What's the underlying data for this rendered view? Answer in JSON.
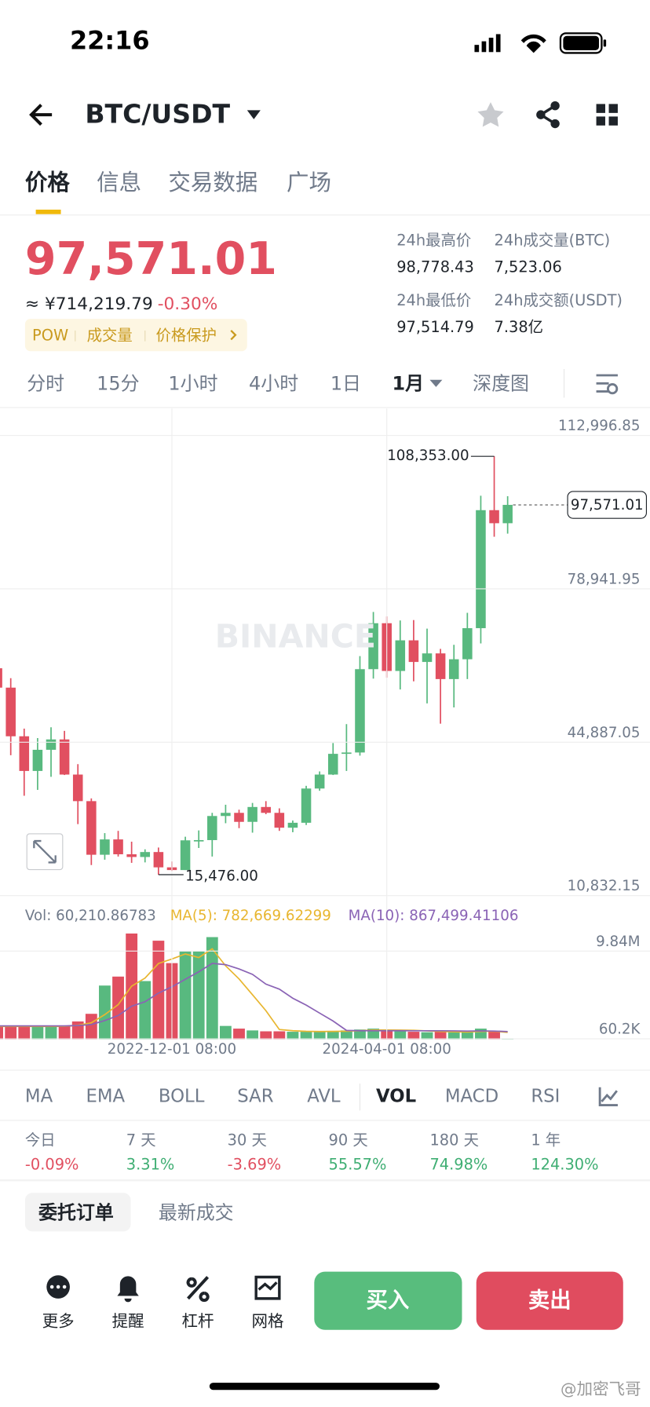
{
  "status_bar": {
    "time": "22:16"
  },
  "header": {
    "pair": "BTC/USDT"
  },
  "tabs": [
    "价格",
    "信息",
    "交易数据",
    "广场"
  ],
  "price": {
    "last": "97,571.01",
    "cny": "≈ ¥714,219.79",
    "change": "-0.30%"
  },
  "tags": [
    "POW",
    "成交量",
    "价格保护"
  ],
  "stats": [
    {
      "label": "24h最高价",
      "value": "98,778.43"
    },
    {
      "label": "24h成交量(BTC)",
      "value": "7,523.06"
    },
    {
      "label": "24h最低价",
      "value": "97,514.79"
    },
    {
      "label": "24h成交额(USDT)",
      "value": "7.38亿"
    }
  ],
  "intervals": [
    "分时",
    "15分",
    "1小时",
    "4小时",
    "1日",
    "1月",
    "深度图"
  ],
  "chart_data": {
    "type": "candlestick",
    "watermark": "BINANCE",
    "up_color": "#58b97f",
    "down_color": "#e14f60",
    "categories": [
      null,
      null,
      null,
      null,
      null,
      null,
      null,
      null,
      null,
      null,
      null,
      null,
      null,
      "2022-12-01 08:00",
      null,
      null,
      null,
      null,
      null,
      null,
      null,
      null,
      null,
      null,
      null,
      null,
      null,
      null,
      null,
      "2024-04-01 08:00",
      null,
      null,
      null,
      null,
      null,
      null,
      null,
      null,
      null
    ],
    "open": [
      61300,
      57000,
      46200,
      38500,
      43200,
      45500,
      37700,
      31800,
      19900,
      23300,
      20000,
      19400,
      20500,
      17100,
      16500,
      23100,
      23150,
      28500,
      29200,
      27200,
      30500,
      29200,
      25900,
      27000,
      34600,
      37700,
      42300,
      42600,
      61100,
      71300,
      60700,
      67500,
      62700,
      64600,
      58900,
      63300,
      70200,
      96400,
      93500
    ],
    "high": [
      69000,
      59100,
      47900,
      45800,
      48200,
      47400,
      40000,
      32400,
      24700,
      25200,
      22800,
      21100,
      21500,
      18400,
      23900,
      25300,
      29200,
      31000,
      29900,
      31400,
      31800,
      30200,
      27500,
      35200,
      38400,
      44700,
      48900,
      64000,
      73800,
      72800,
      71900,
      72000,
      70100,
      65600,
      66500,
      73600,
      99600,
      108353,
      99500
    ],
    "low": [
      53300,
      42000,
      33000,
      34300,
      37200,
      37600,
      26700,
      17600,
      18800,
      19500,
      18100,
      18200,
      15476,
      16300,
      16500,
      21400,
      19500,
      26900,
      25800,
      24800,
      28900,
      25200,
      24900,
      26500,
      34100,
      37600,
      38500,
      41900,
      59000,
      59200,
      56600,
      58400,
      53500,
      49000,
      52600,
      58900,
      66800,
      90500,
      91200
    ],
    "close": [
      57000,
      46200,
      38500,
      43200,
      45500,
      37700,
      31800,
      19900,
      23300,
      20000,
      19400,
      20500,
      17100,
      16500,
      23100,
      23150,
      28500,
      29200,
      27200,
      30500,
      29200,
      25900,
      27000,
      34600,
      37700,
      42300,
      42600,
      61100,
      71300,
      60700,
      67500,
      62700,
      64600,
      58900,
      63300,
      70200,
      96400,
      93500,
      97571.01
    ],
    "max_label": "108,353.00",
    "min_label": "15,476.00",
    "last_label": "97,571.01",
    "ylim": [
      10832.15,
      118982
    ],
    "yticks": [
      {
        "value": 112996.85,
        "label": "112,996.85"
      },
      {
        "value": 78941.95,
        "label": "78,941.95"
      },
      {
        "value": 44887.05,
        "label": "44,887.05"
      },
      {
        "value": 10832.15,
        "label": "10,832.15"
      }
    ],
    "grid": true,
    "volume": {
      "label": "Vol: 60,210.86783",
      "values": [
        1450000,
        1450000,
        1450000,
        1450000,
        1450000,
        1500000,
        2000000,
        2850000,
        6000000,
        7000000,
        11800000,
        6500000,
        11000000,
        8500000,
        9800000,
        9800000,
        11400000,
        1500000,
        1200000,
        1000000,
        900000,
        900000,
        850000,
        850000,
        900000,
        950000,
        1000000,
        1100000,
        1200000,
        1000000,
        900000,
        850000,
        800000,
        850000,
        800000,
        800000,
        1200000,
        900000,
        60210.86783
      ],
      "ylim": [
        0,
        15030000
      ],
      "yticks": [
        {
          "value": 9840000,
          "label": "9.84M"
        },
        {
          "value": 60200,
          "label": "60.2K"
        }
      ],
      "ma": [
        {
          "name": "MA(5): 782,669.62299",
          "color": "#e8b630",
          "values": [
            1450000,
            1450000,
            1450000,
            1450000,
            1450000,
            1460000,
            1570000,
            1850000,
            2760000,
            3870000,
            5930000,
            6830000,
            8460000,
            8960000,
            9520000,
            9120000,
            10100000,
            8200000,
            6740000,
            4980000,
            3200000,
            1100000,
            970000,
            900000,
            880000,
            890000,
            910000,
            970000,
            1040000,
            1050000,
            1030000,
            1010000,
            950000,
            880000,
            840000,
            820000,
            890000,
            910000,
            782669.62299
          ]
        },
        {
          "name": "MA(10): 867,499.41106",
          "color": "#8a63b5",
          "values": [
            1500000,
            1500000,
            1500000,
            1500000,
            1500000,
            1500000,
            1550000,
            1650000,
            2100000,
            2660000,
            3700000,
            4200000,
            5160000,
            5860000,
            6700000,
            7530000,
            8470000,
            8330000,
            7850000,
            7250000,
            6160000,
            5600000,
            4590000,
            3820000,
            2930000,
            2050000,
            1000000,
            970000,
            970000,
            970000,
            970000,
            960000,
            960000,
            960000,
            950000,
            930000,
            950000,
            930000,
            867499.41106
          ]
        }
      ]
    }
  },
  "indicators": [
    "MA",
    "EMA",
    "BOLL",
    "SAR",
    "AVL",
    "VOL",
    "MACD",
    "RSI"
  ],
  "performance": [
    {
      "label": "今日",
      "value": "-0.09%"
    },
    {
      "label": "7 天",
      "value": "3.31%"
    },
    {
      "label": "30 天",
      "value": "-3.69%"
    },
    {
      "label": "90 天",
      "value": "55.57%"
    },
    {
      "label": "180 天",
      "value": "74.98%"
    },
    {
      "label": "1 年",
      "value": "124.30%"
    }
  ],
  "order_tabs": [
    "委托订单",
    "最新成交"
  ],
  "actions": [
    "更多",
    "提醒",
    "杠杆",
    "网格"
  ],
  "buy": "买入",
  "sell": "卖出",
  "watermark": "@加密飞哥"
}
